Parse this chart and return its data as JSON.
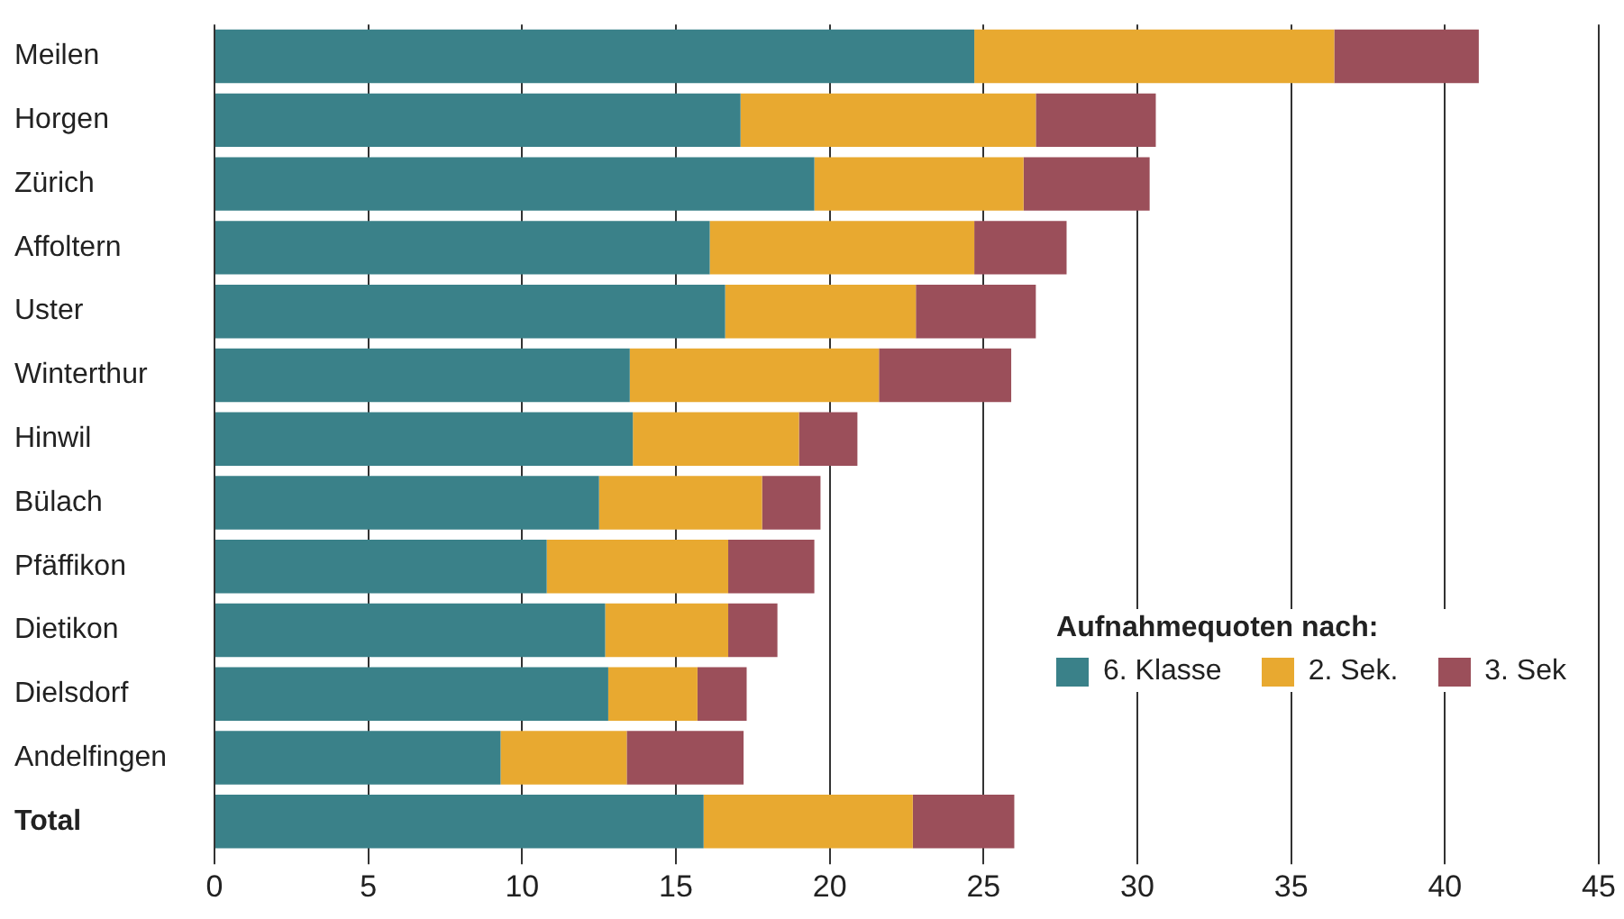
{
  "chart_data": {
    "type": "bar",
    "orientation": "horizontal",
    "stacked": true,
    "legend_title": "Aufnahmequoten nach:",
    "legend": "bottom right",
    "grid": "x",
    "categories": [
      "Meilen",
      "Horgen",
      "Zürich",
      "Affoltern",
      "Uster",
      "Winterthur",
      "Hinwil",
      "Bülach",
      "Pfäffikon",
      "Dietikon",
      "Dielsdorf",
      "Andelfingen",
      "Total"
    ],
    "xlim": [
      0,
      45
    ],
    "xticks": [
      0,
      5,
      10,
      15,
      20,
      25,
      30,
      35,
      40,
      45
    ],
    "series": [
      {
        "name": "6. Klasse",
        "color": "#3a8189",
        "values": [
          24.7,
          17.1,
          19.5,
          16.1,
          16.6,
          13.5,
          13.6,
          12.5,
          10.8,
          12.7,
          12.8,
          9.3,
          15.9
        ]
      },
      {
        "name": "2. Sek.",
        "color": "#e8a930",
        "values": [
          11.7,
          9.6,
          6.8,
          8.6,
          6.2,
          8.1,
          5.4,
          5.3,
          5.9,
          4.0,
          2.9,
          4.1,
          6.8
        ]
      },
      {
        "name": "3. Sek",
        "color": "#9b4f5a",
        "values": [
          4.7,
          3.9,
          4.1,
          3.0,
          3.9,
          4.3,
          1.9,
          1.9,
          2.8,
          1.6,
          1.6,
          3.8,
          3.3
        ]
      }
    ]
  }
}
